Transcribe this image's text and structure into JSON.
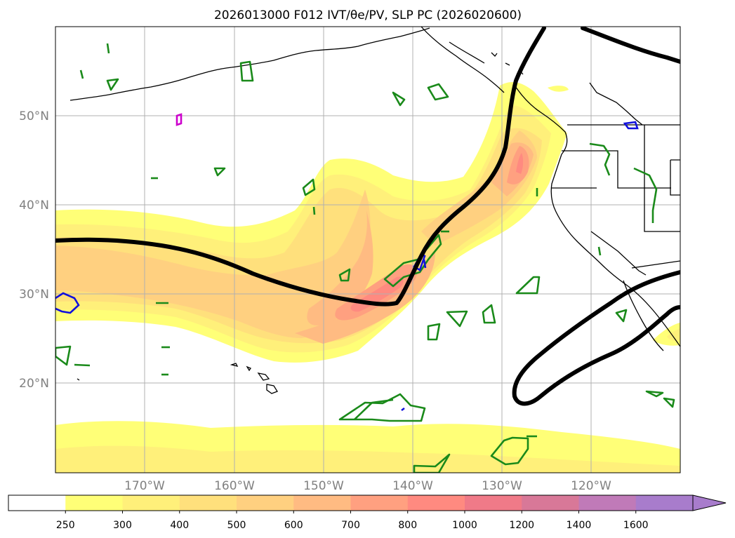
{
  "title": "2026013000 F012 IVT/θe/PV, SLP PC (2026020600)",
  "map": {
    "lon_range": [
      -180,
      -110
    ],
    "lat_range": [
      10,
      60
    ],
    "lat_labels": [
      "20°N",
      "30°N",
      "40°N",
      "50°N"
    ],
    "lon_labels": [
      "170°W",
      "160°W",
      "150°W",
      "140°W",
      "130°W",
      "120°W"
    ]
  },
  "colorbar": {
    "ticks": [
      "250",
      "300",
      "400",
      "500",
      "600",
      "700",
      "800",
      "1000",
      "1200",
      "1400",
      "1600"
    ],
    "colors": [
      "#ffffff",
      "#ffff77",
      "#fff07a",
      "#ffe07c",
      "#ffd080",
      "#ffbb82",
      "#ffa080",
      "#ff8a80",
      "#f07a88",
      "#d87898",
      "#c07ab8",
      "#a87ccc"
    ]
  },
  "legend_colors": {
    "ivt_low": "#ffff77",
    "ivt_mid": "#ffd080",
    "ivt_high": "#ff8a80",
    "pv": "#1a8a1a",
    "slp": "#000000",
    "theta_cold": "#1010dd",
    "theta_other": "#cc00cc"
  }
}
